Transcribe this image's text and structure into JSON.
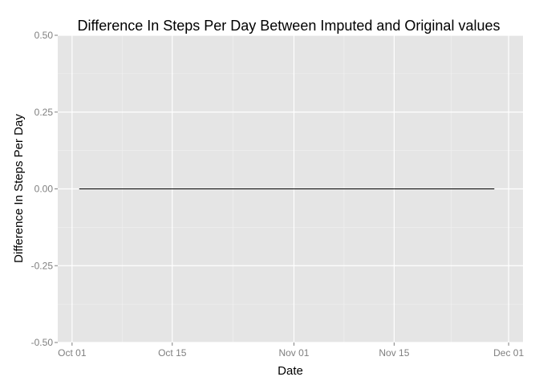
{
  "chart_data": {
    "type": "line",
    "title": "Difference In Steps Per Day Between Imputed and Original values",
    "xlabel": "Date",
    "ylabel": "Difference In Steps Per Day",
    "xlim": [
      "2012-09-29",
      "2012-12-03"
    ],
    "ylim": [
      -0.5,
      0.5
    ],
    "x_ticks": [
      {
        "value": "2012-10-01",
        "label": "Oct 01"
      },
      {
        "value": "2012-10-15",
        "label": "Oct 15"
      },
      {
        "value": "2012-11-01",
        "label": "Nov 01"
      },
      {
        "value": "2012-11-15",
        "label": "Nov 15"
      },
      {
        "value": "2012-12-01",
        "label": "Dec 01"
      }
    ],
    "y_ticks": [
      {
        "value": 0.5,
        "label": "0.50"
      },
      {
        "value": 0.25,
        "label": "0.25"
      },
      {
        "value": 0.0,
        "label": "0.00"
      },
      {
        "value": -0.25,
        "label": "-0.25"
      },
      {
        "value": -0.5,
        "label": "-0.50"
      }
    ],
    "x": [
      "2012-10-02",
      "2012-11-29"
    ],
    "y": [
      0,
      0
    ],
    "grid": true,
    "colors": {
      "panel": "#e5e5e5",
      "grid_major": "#ffffff",
      "grid_minor": "#f2f2f2",
      "line": "#000000",
      "tick_label": "#7f7f7f"
    }
  }
}
